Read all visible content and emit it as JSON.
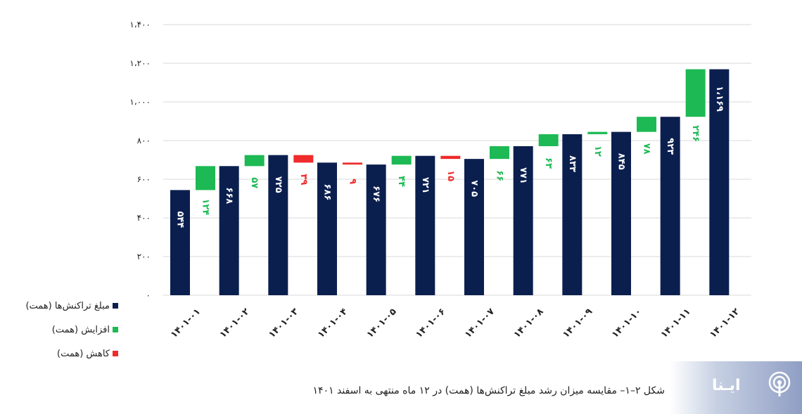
{
  "chart_data": {
    "type": "waterfall",
    "y_ticks": [
      "۰",
      "۲۰۰",
      "۴۰۰",
      "۶۰۰",
      "۸۰۰",
      "۱،۰۰۰",
      "۱،۲۰۰",
      "۱،۴۰۰"
    ],
    "y_tick_values": [
      0,
      200,
      400,
      600,
      800,
      1000,
      1200,
      1400
    ],
    "ylim": [
      0,
      1400
    ],
    "grid": true,
    "categories": [
      "۱۴۰۱-۰۱",
      "۱۴۰۱-۰۲",
      "۱۴۰۱-۰۳",
      "۱۴۰۱-۰۴",
      "۱۴۰۱-۰۵",
      "۱۴۰۱-۰۶",
      "۱۴۰۱-۰۷",
      "۱۴۰۱-۰۸",
      "۱۴۰۱-۰۹",
      "۱۴۰۱-۱۰",
      "۱۴۰۱-۱۱",
      "۱۴۰۱-۱۲"
    ],
    "totals": [
      544,
      668,
      725,
      686,
      676,
      721,
      705,
      771,
      833,
      845,
      923,
      1169
    ],
    "total_labels": [
      "۵۴۴",
      "۶۶۸",
      "۷۲۵",
      "۶۸۶",
      "۶۷۶",
      "۷۲۱",
      "۷۰۵",
      "۷۷۱",
      "۸۳۳",
      "۸۴۵",
      "۹۲۳",
      "۱،۱۶۹"
    ],
    "changes": [
      {
        "direction": "increase",
        "value": 124,
        "label": "۱۲۴"
      },
      {
        "direction": "increase",
        "value": 57,
        "label": "۵۷"
      },
      {
        "direction": "decrease",
        "value": 39,
        "label": "۳۹"
      },
      {
        "direction": "decrease",
        "value": 9,
        "label": "۹"
      },
      {
        "direction": "increase",
        "value": 44,
        "label": "۴۴"
      },
      {
        "direction": "decrease",
        "value": 15,
        "label": "۱۵"
      },
      {
        "direction": "increase",
        "value": 66,
        "label": "۶۶"
      },
      {
        "direction": "increase",
        "value": 63,
        "label": "۶۳"
      },
      {
        "direction": "increase",
        "value": 12,
        "label": "۱۲"
      },
      {
        "direction": "increase",
        "value": 78,
        "label": "۷۸"
      },
      {
        "direction": "increase",
        "value": 246,
        "label": "۲۴۶"
      }
    ],
    "colors": {
      "total": "#0b1f4f",
      "increase": "#1db954",
      "decrease": "#ef2b2b",
      "grid": "#d9d9d9",
      "axis_text": "#222222"
    },
    "legend": [
      {
        "label": "مبلغ تراکنش‌ها (همت)",
        "color": "#0b1f4f"
      },
      {
        "label": "افزایش (همت)",
        "color": "#1db954"
      },
      {
        "label": "کاهش (همت)",
        "color": "#ef2b2b"
      }
    ],
    "legend_position": "bottom-left"
  },
  "caption": "شکل ۲–۱– مقایسه میزان رشد مبلغ تراکنش‌ها (همت) در ۱۲ ماه منتهی به اسفند ۱۴۰۱",
  "brand": {
    "name": "ایـنا"
  }
}
